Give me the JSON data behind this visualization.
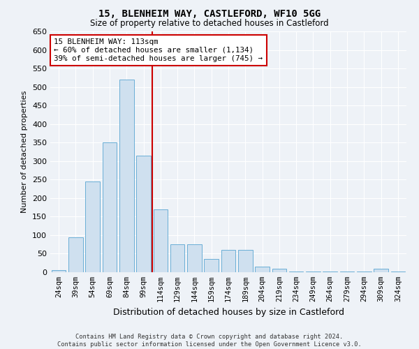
{
  "title": "15, BLENHEIM WAY, CASTLEFORD, WF10 5GG",
  "subtitle": "Size of property relative to detached houses in Castleford",
  "xlabel": "Distribution of detached houses by size in Castleford",
  "ylabel": "Number of detached properties",
  "bar_color": "#cfe0ef",
  "bar_edge_color": "#6aaed6",
  "background_color": "#eef2f7",
  "grid_color": "#ffffff",
  "categories": [
    "24sqm",
    "39sqm",
    "54sqm",
    "69sqm",
    "84sqm",
    "99sqm",
    "114sqm",
    "129sqm",
    "144sqm",
    "159sqm",
    "174sqm",
    "189sqm",
    "204sqm",
    "219sqm",
    "234sqm",
    "249sqm",
    "264sqm",
    "279sqm",
    "294sqm",
    "309sqm",
    "324sqm"
  ],
  "values": [
    5,
    95,
    245,
    350,
    520,
    315,
    170,
    75,
    75,
    35,
    60,
    60,
    15,
    10,
    2,
    1,
    1,
    1,
    1,
    10,
    1
  ],
  "property_line_color": "#cc0000",
  "annotation_text": "15 BLENHEIM WAY: 113sqm\n← 60% of detached houses are smaller (1,134)\n39% of semi-detached houses are larger (745) →",
  "annotation_box_color": "#ffffff",
  "annotation_box_edge": "#cc0000",
  "ylim": [
    0,
    650
  ],
  "footnote1": "Contains HM Land Registry data © Crown copyright and database right 2024.",
  "footnote2": "Contains public sector information licensed under the Open Government Licence v3.0."
}
